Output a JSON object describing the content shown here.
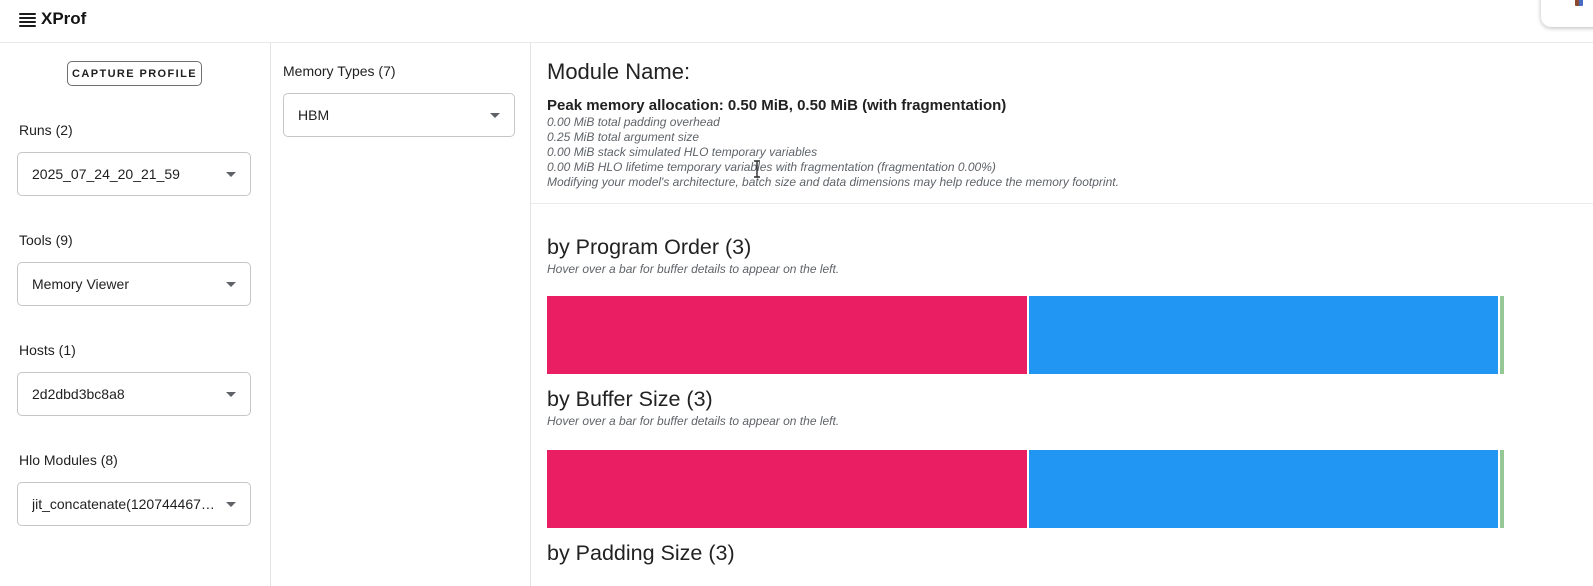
{
  "app": {
    "title": "XProf"
  },
  "toolbar": {
    "capture_button_label": "CAPTURE PROFILE"
  },
  "sidebar": {
    "fields": [
      {
        "label": "Runs (2)",
        "value": "2025_07_24_20_21_59"
      },
      {
        "label": "Tools (9)",
        "value": "Memory Viewer"
      },
      {
        "label": "Hosts (1)",
        "value": "2d2dbd3bc8a8"
      },
      {
        "label": "Hlo Modules (8)",
        "value": "jit_concatenate(120744467751..."
      }
    ]
  },
  "memory_types": {
    "label": "Memory Types (7)",
    "value": "HBM"
  },
  "module": {
    "heading": "Module Name:",
    "peak_line": "Peak memory allocation: 0.50 MiB, 0.50 MiB (with fragmentation)",
    "details": [
      "0.00 MiB total padding overhead",
      "0.25 MiB total argument size",
      "0.00 MiB stack simulated HLO temporary variables",
      "0.00 MiB HLO lifetime temporary variables with fragmentation (fragmentation 0.00%)",
      "Modifying your model's architecture, batch size and data dimensions may help reduce the memory footprint."
    ]
  },
  "sections": [
    {
      "title": "by Program Order (3)",
      "subtitle": "Hover over a bar for buffer details to appear on the left."
    },
    {
      "title": "by Buffer Size (3)",
      "subtitle": "Hover over a bar for buffer details to appear on the left."
    },
    {
      "title": "by Padding Size (3)",
      "subtitle": ""
    }
  ],
  "chart_data": {
    "type": "bar",
    "title": "Stacked memory allocation bars (fraction of 0.50 MiB peak)",
    "legend_position": "none",
    "colors": [
      "#e91e63",
      "#2196f3",
      "#96c896"
    ],
    "bars": [
      {
        "section": "by Program Order (3)",
        "segments": [
          {
            "color": 0,
            "percent": 50.2
          },
          {
            "color": 1,
            "percent": 49.1
          },
          {
            "color": 2,
            "percent": 0.45
          }
        ]
      },
      {
        "section": "by Buffer Size (3)",
        "segments": [
          {
            "color": 0,
            "percent": 50.2
          },
          {
            "color": 1,
            "percent": 49.1
          },
          {
            "color": 2,
            "percent": 0.45
          }
        ]
      }
    ]
  }
}
